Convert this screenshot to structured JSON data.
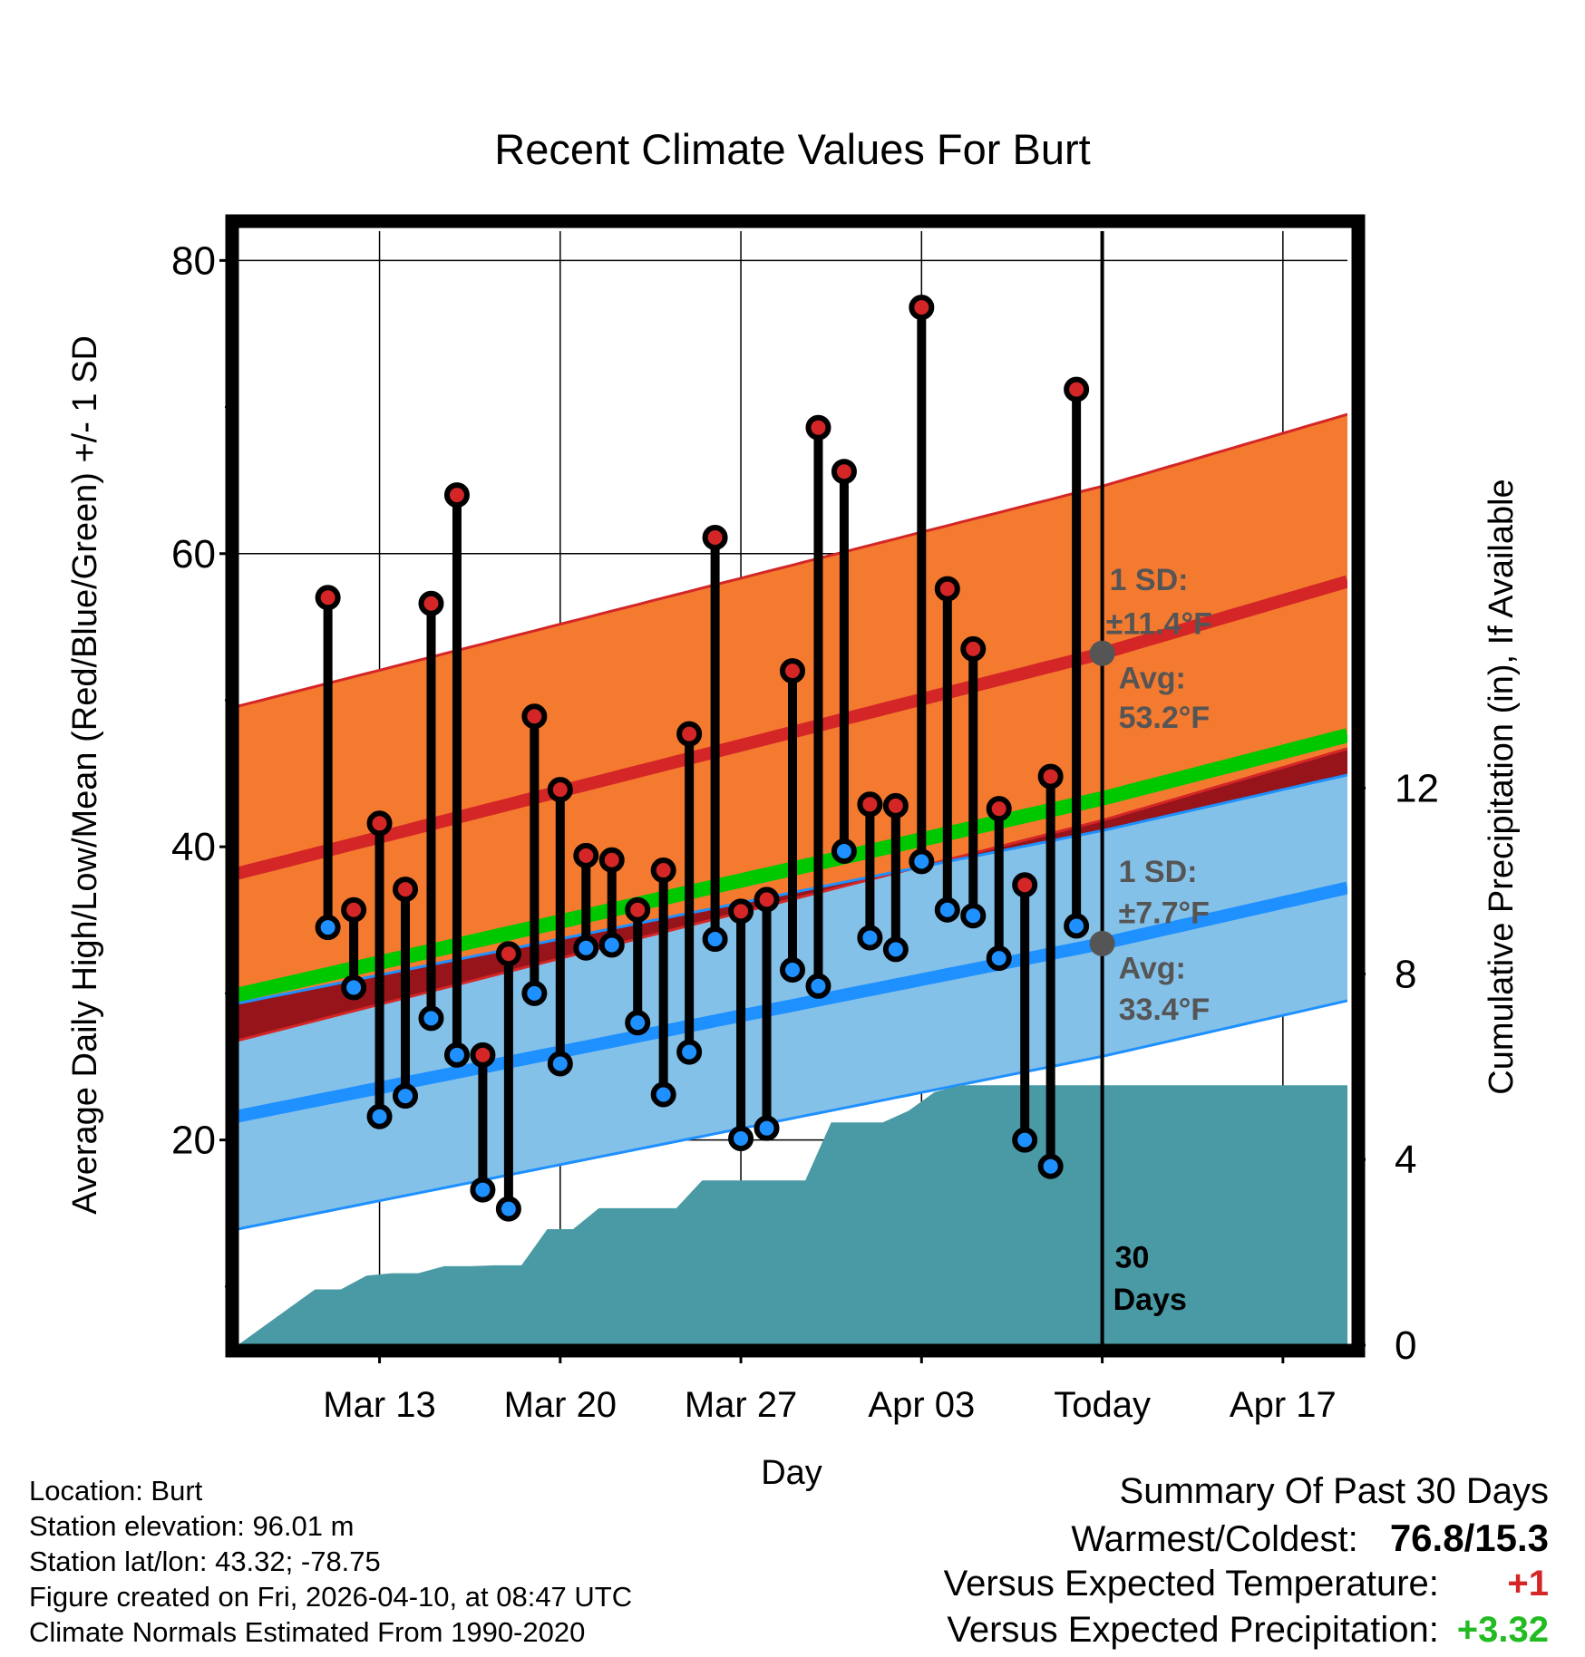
{
  "chart_data": {
    "type": "line",
    "title": "Recent Climate Values For Burt",
    "xlabel": "Day",
    "ylabel_left": "Average Daily High/Low/Mean (Red/Blue/Green) +/- 1 SD",
    "ylabel_right": "Cumulative Precipitation (in), If Available",
    "ylim_left": [
      6,
      82
    ],
    "ylim_right": [
      0,
      24
    ],
    "y_ticks_left": [
      20,
      40,
      60,
      80
    ],
    "y_ticks_right": [
      0,
      4,
      8,
      12
    ],
    "x_range_days": [
      -33.5,
      9.5
    ],
    "x_ticks": [
      {
        "day": -28,
        "label": "Mar 13"
      },
      {
        "day": -21,
        "label": "Mar 20"
      },
      {
        "day": -14,
        "label": "Mar 27"
      },
      {
        "day": -7,
        "label": "Apr 03"
      },
      {
        "day": 0,
        "label": "Today"
      },
      {
        "day": 7,
        "label": "Apr 17"
      }
    ],
    "daily_highs": [
      57.0,
      35.7,
      41.6,
      37.1,
      56.6,
      64.0,
      25.8,
      32.7,
      48.9,
      43.9,
      39.4,
      39.1,
      35.7,
      38.4,
      47.7,
      61.1,
      35.6,
      36.4,
      52.0,
      68.6,
      65.6,
      42.9,
      42.8,
      76.8,
      57.6,
      53.5,
      42.6,
      37.4,
      44.8,
      71.2
    ],
    "daily_lows": [
      34.5,
      30.4,
      21.6,
      23.0,
      28.3,
      25.8,
      16.6,
      15.3,
      30.0,
      25.2,
      33.1,
      33.3,
      28.0,
      23.1,
      26.0,
      33.7,
      20.1,
      20.8,
      31.6,
      30.5,
      39.7,
      33.8,
      33.0,
      39.0,
      35.7,
      35.3,
      32.4,
      20.0,
      18.2,
      34.6
    ],
    "normal_high": {
      "start": 40.2,
      "today": 53.2,
      "end": 58.1,
      "sd": 11.4
    },
    "normal_low": {
      "start": 23.2,
      "today": 33.4,
      "end": 37.2,
      "sd": 7.7
    },
    "normal_mean": {
      "start": 31.7,
      "today": 43.3,
      "end": 47.6
    },
    "cumulative_precip": [
      1.2,
      1.2,
      1.5,
      1.55,
      1.55,
      1.7,
      1.7,
      1.72,
      1.72,
      2.5,
      2.5,
      2.95,
      2.95,
      2.95,
      2.95,
      3.55,
      3.55,
      3.55,
      3.55,
      3.55,
      4.8,
      4.8,
      4.8,
      5.05,
      5.45,
      5.6,
      5.6,
      5.6,
      5.6,
      5.6,
      5.6
    ],
    "precip_extend_to_day": 9.5,
    "today_line_label": "30 Days",
    "annotations": {
      "high_sd_title": "1 SD:",
      "high_sd_value": "±11.4°F",
      "high_avg_title": "Avg:",
      "high_avg_value": "53.2°F",
      "low_sd_title": "1 SD:",
      "low_sd_value": "±7.7°F",
      "low_avg_title": "Avg:",
      "low_avg_value": "33.4°F"
    },
    "colors": {
      "high_band": "#f47a30",
      "high_band_edge": "#d42626",
      "high_line": "#d42626",
      "low_band": "#84c1e8",
      "low_band_edge": "#1e90ff",
      "low_line": "#1e90ff",
      "mean_line": "#00c800",
      "overlap": "#96141a",
      "precip": "#4a9aa5",
      "high_marker": "#d42626",
      "low_marker": "#1e90ff",
      "annotation_text": "#555555",
      "avg_dot": "#555555"
    }
  },
  "footer": {
    "location": "Location: Burt",
    "elevation": "Station elevation: 96.01 m",
    "latlon": "Station lat/lon: 43.32; -78.75",
    "created": "Figure created on Fri, 2026-04-10, at 08:47 UTC",
    "normals": "Climate Normals Estimated From 1990-2020"
  },
  "summary": {
    "title": "Summary Of Past 30 Days",
    "warm_cold_label": "Warmest/Coldest:",
    "warm_cold_value": "76.8/15.3",
    "temp_label": "Versus Expected Temperature:",
    "temp_value": "+1",
    "temp_color": "#d42626",
    "precip_label": "Versus Expected Precipitation:",
    "precip_value": "+3.32",
    "precip_color": "#22bb22"
  }
}
